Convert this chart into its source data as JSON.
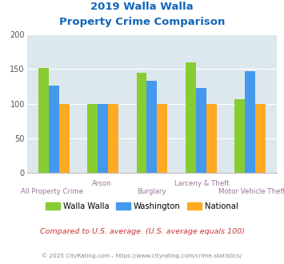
{
  "title_line1": "2019 Walla Walla",
  "title_line2": "Property Crime Comparison",
  "categories": [
    "All Property Crime",
    "Arson",
    "Burglary",
    "Larceny & Theft",
    "Motor Vehicle Theft"
  ],
  "label_row": [
    1,
    0,
    1,
    0,
    1
  ],
  "walla_walla": [
    151,
    100,
    145,
    160,
    106
  ],
  "washington": [
    126,
    100,
    133,
    123,
    147
  ],
  "national": [
    100,
    100,
    100,
    100,
    100
  ],
  "color_ww": "#88cc33",
  "color_wa": "#4499ee",
  "color_nat": "#ffaa22",
  "ylim": [
    0,
    200
  ],
  "yticks": [
    0,
    50,
    100,
    150,
    200
  ],
  "bg_color": "#dce8ee",
  "title_color": "#1166bb",
  "xlabel_color": "#997799",
  "footnote": "Compared to U.S. average. (U.S. average equals 100)",
  "copyright": "© 2025 CityRating.com - https://www.cityrating.com/crime-statistics/",
  "footnote_color": "#cc3333",
  "copyright_color": "#888888"
}
